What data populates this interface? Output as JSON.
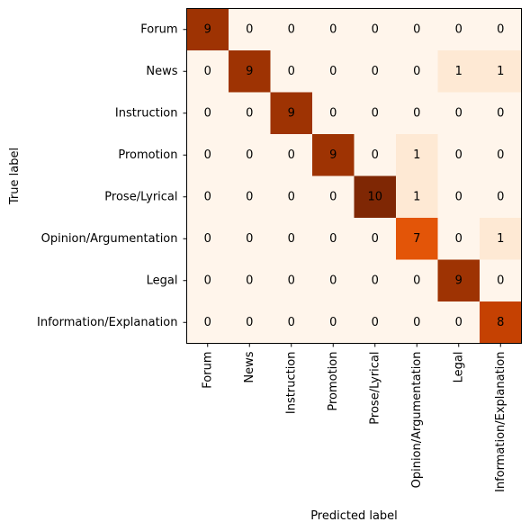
{
  "chart_data": {
    "type": "heatmap",
    "title": "",
    "xlabel": "Predicted label",
    "ylabel": "True label",
    "categories": [
      "Forum",
      "News",
      "Instruction",
      "Promotion",
      "Prose/Lyrical",
      "Opinion/Argumentation",
      "Legal",
      "Information/Explanation"
    ],
    "matrix": [
      [
        9,
        0,
        0,
        0,
        0,
        0,
        0,
        0
      ],
      [
        0,
        9,
        0,
        0,
        0,
        0,
        1,
        1
      ],
      [
        0,
        0,
        9,
        0,
        0,
        0,
        0,
        0
      ],
      [
        0,
        0,
        0,
        9,
        0,
        1,
        0,
        0
      ],
      [
        0,
        0,
        0,
        0,
        10,
        1,
        0,
        0
      ],
      [
        0,
        0,
        0,
        0,
        0,
        7,
        0,
        1
      ],
      [
        0,
        0,
        0,
        0,
        0,
        0,
        9,
        0
      ],
      [
        0,
        0,
        0,
        0,
        0,
        0,
        0,
        8
      ]
    ],
    "value_range": [
      0,
      10
    ],
    "colormap": [
      "#fff5eb",
      "#fee6ce",
      "#fdd0a2",
      "#fdae6b",
      "#fd8d3c",
      "#f16913",
      "#d94801",
      "#a63603",
      "#7f2704"
    ],
    "grid": false
  }
}
